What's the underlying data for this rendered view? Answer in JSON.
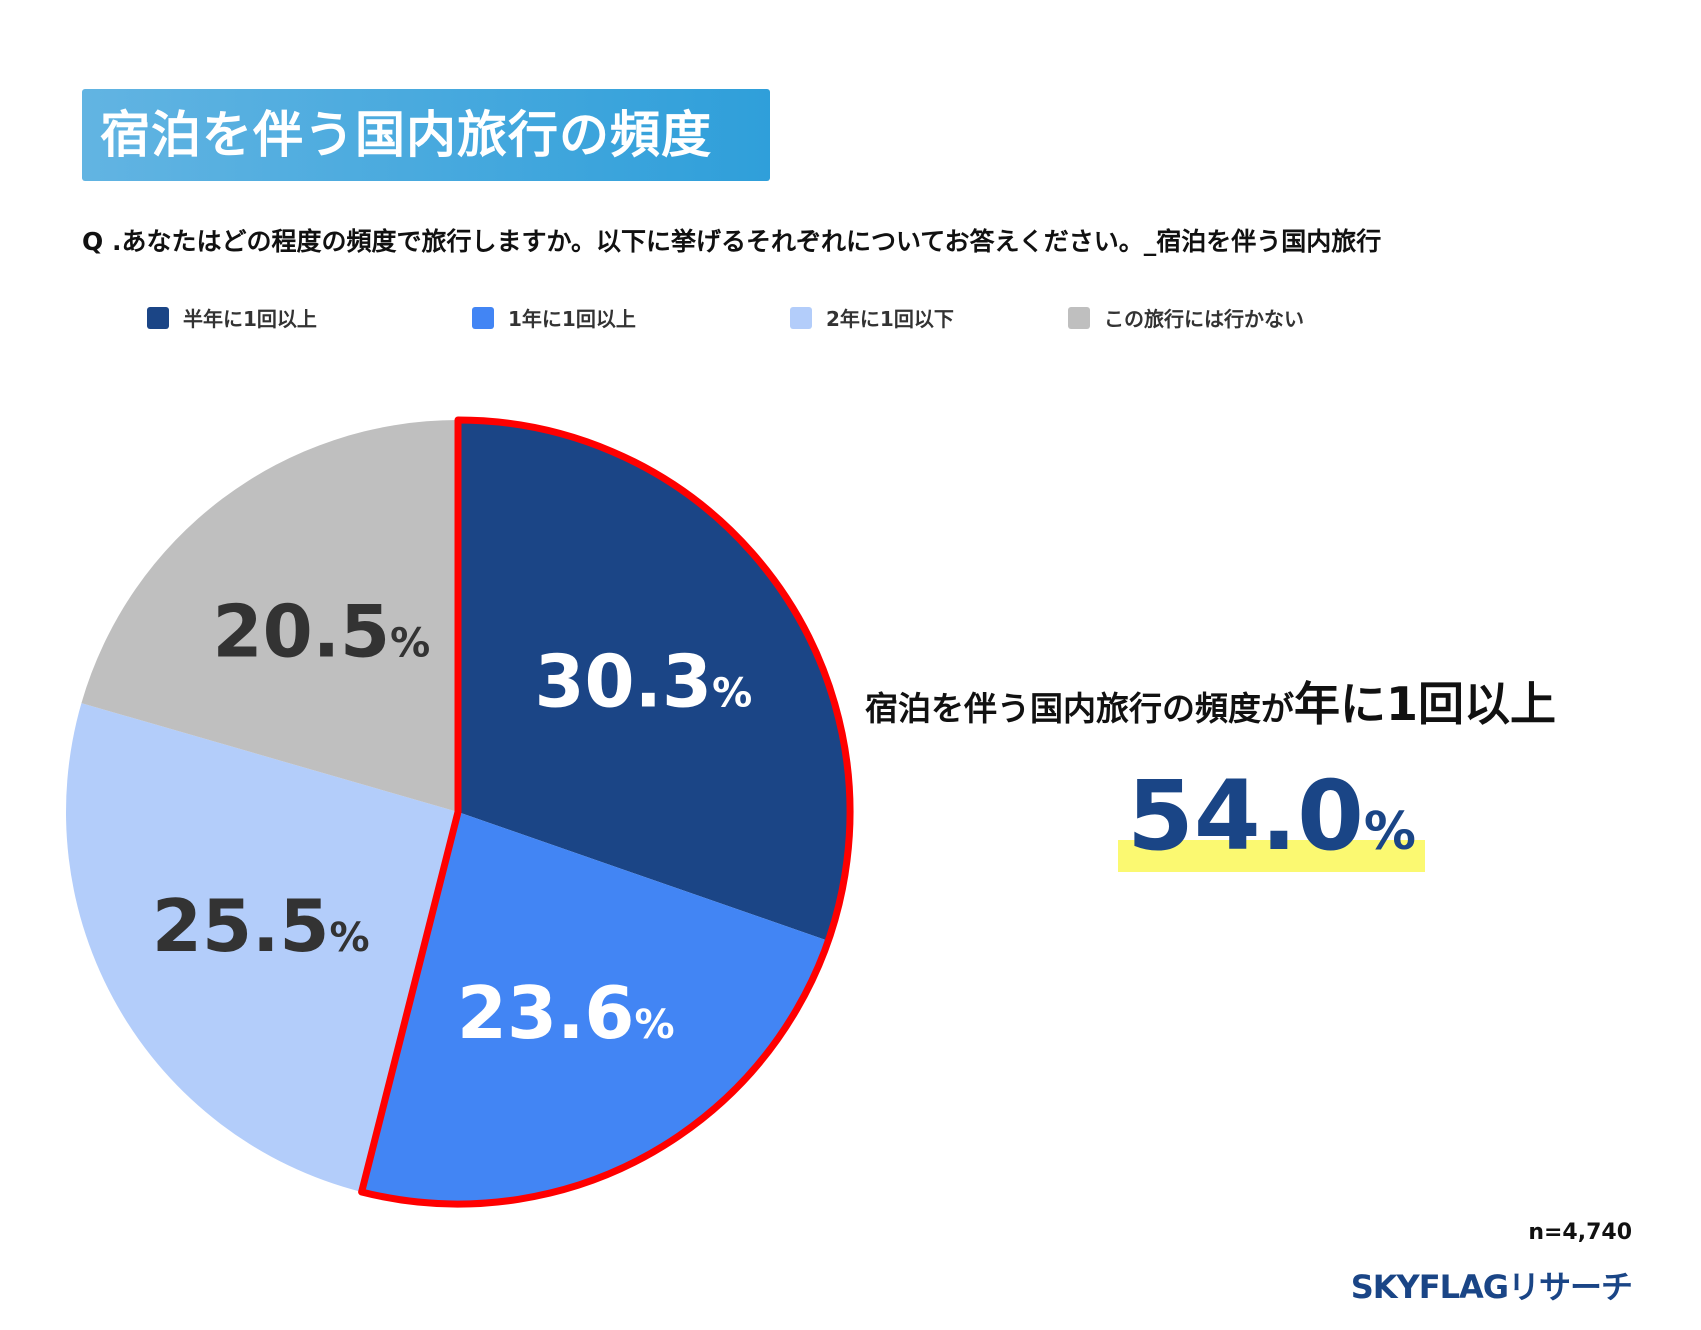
{
  "title": "宿泊を伴う国内旅行の頻度",
  "question": "Q  .あなたはどの程度の頻度で旅行しますか。以下に挙げるそれぞれについてお答えください。_宿泊を伴う国内旅行",
  "headline": {
    "prefix": "宿泊を伴う国内旅行の頻度が",
    "emphasis": "年に1回以上"
  },
  "summary": {
    "value": "54.0",
    "unit": "%"
  },
  "sample": "n=4,740",
  "brand": "SKYFLAGリサーチ",
  "colors": {
    "highlight_outline": "#ff0000",
    "summary_highlight": "#fbf971",
    "accent": "#1a4586"
  },
  "chart_data": {
    "type": "pie",
    "start": "top, clockwise",
    "legend_position": "top",
    "slices": [
      {
        "label": "半年に1回以上",
        "value": 30.3,
        "display": "30.3",
        "color": "#1b4586",
        "label_color": "#ffffff",
        "highlighted": true
      },
      {
        "label": "1年に1回以上",
        "value": 23.6,
        "display": "23.6",
        "color": "#4285f4",
        "label_color": "#ffffff",
        "highlighted": true
      },
      {
        "label": "2年に1回以下",
        "value": 25.5,
        "display": "25.5",
        "color": "#b3cdfa",
        "label_color": "#333333",
        "highlighted": false
      },
      {
        "label": "この旅行には行かない",
        "value": 20.5,
        "display": "20.5",
        "color": "#bfbfbf",
        "label_color": "#333333",
        "highlighted": false
      }
    ],
    "unit": "%"
  }
}
